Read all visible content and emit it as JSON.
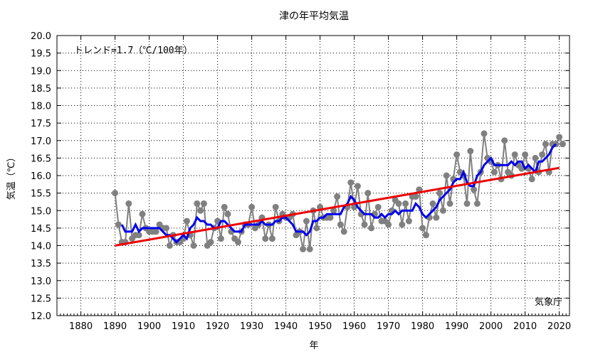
{
  "chart_data": {
    "type": "line",
    "title": "津の年平均気温",
    "xlabel": "年",
    "ylabel": "気温（℃）",
    "annotation": "トレンド=1.7（℃/100年）",
    "credit": "気象庁",
    "xlim": [
      1873,
      2023
    ],
    "ylim": [
      12.0,
      20.0
    ],
    "x_ticks": [
      1880,
      1890,
      1900,
      1910,
      1920,
      1930,
      1940,
      1950,
      1960,
      1970,
      1980,
      1990,
      2000,
      2010,
      2020
    ],
    "y_ticks": [
      12.0,
      12.5,
      13.0,
      13.5,
      14.0,
      14.5,
      15.0,
      15.5,
      16.0,
      16.5,
      17.0,
      17.5,
      18.0,
      18.5,
      19.0,
      19.5,
      20.0
    ],
    "y_tick_labels": [
      "12.0",
      "12.5",
      "13.0",
      "13.5",
      "14.0",
      "14.5",
      "15.0",
      "15.5",
      "16.0",
      "16.5",
      "17.0",
      "17.5",
      "18.0",
      "18.5",
      "19.0",
      "19.5",
      "20.0"
    ],
    "grid": true,
    "colors": {
      "annual": "#808080",
      "moving_average": "#0000ee",
      "trend": "#ee0000",
      "grid": "#000000"
    },
    "series": [
      {
        "kind": "annual",
        "x": [
          1890,
          1891,
          1892,
          1893,
          1894,
          1895,
          1896,
          1897,
          1898,
          1899,
          1900,
          1901,
          1902,
          1903,
          1904,
          1905,
          1906,
          1907,
          1908,
          1909,
          1910,
          1911,
          1912,
          1913,
          1914,
          1915,
          1916,
          1917,
          1918,
          1919,
          1920,
          1921,
          1922,
          1923,
          1924,
          1925,
          1926,
          1927,
          1928,
          1929,
          1930,
          1931,
          1932,
          1933,
          1934,
          1935,
          1936,
          1937,
          1938,
          1939,
          1940,
          1941,
          1942,
          1943,
          1944,
          1945,
          1946,
          1947,
          1948,
          1949,
          1950,
          1951,
          1952,
          1953,
          1954,
          1955,
          1956,
          1957,
          1958,
          1959,
          1960,
          1961,
          1962,
          1963,
          1964,
          1965,
          1966,
          1967,
          1968,
          1969,
          1970,
          1971,
          1972,
          1973,
          1974,
          1975,
          1976,
          1977,
          1978,
          1979,
          1980,
          1981,
          1982,
          1983,
          1984,
          1985,
          1986,
          1987,
          1988,
          1989,
          1990,
          1991,
          1992,
          1993,
          1994,
          1995,
          1996,
          1997,
          1998,
          1999,
          2000,
          2001,
          2002,
          2003,
          2004,
          2005,
          2006,
          2007,
          2008,
          2009,
          2010,
          2011,
          2012,
          2013,
          2014,
          2015,
          2016,
          2017,
          2018,
          2019,
          2020,
          2021
        ],
        "y": [
          15.5,
          14.6,
          14.1,
          14.1,
          15.2,
          14.2,
          14.3,
          14.3,
          14.9,
          14.5,
          14.4,
          14.4,
          14.4,
          14.6,
          14.5,
          14.5,
          14.0,
          14.3,
          14.1,
          14.1,
          14.2,
          14.7,
          14.3,
          14.0,
          15.2,
          15.0,
          15.2,
          14.0,
          14.1,
          14.5,
          14.7,
          14.2,
          15.1,
          14.9,
          14.4,
          14.2,
          14.1,
          14.4,
          14.6,
          14.6,
          15.1,
          14.5,
          14.6,
          14.8,
          14.2,
          14.6,
          14.2,
          15.1,
          14.7,
          14.9,
          14.8,
          14.8,
          14.9,
          14.3,
          14.4,
          13.9,
          14.7,
          13.9,
          15.0,
          14.5,
          15.1,
          14.8,
          14.8,
          14.8,
          15.0,
          15.4,
          14.6,
          14.4,
          15.1,
          15.8,
          15.1,
          15.7,
          14.9,
          14.6,
          15.5,
          14.5,
          14.9,
          15.1,
          14.7,
          14.7,
          14.6,
          15.0,
          15.3,
          15.2,
          14.6,
          15.2,
          14.7,
          15.4,
          15.4,
          15.6,
          14.5,
          14.3,
          14.8,
          15.2,
          14.8,
          15.5,
          15.0,
          16.0,
          15.2,
          15.9,
          16.6,
          16.1,
          16.0,
          15.2,
          16.7,
          15.6,
          15.2,
          16.1,
          17.2,
          16.5,
          16.4,
          16.1,
          16.3,
          15.9,
          17.0,
          16.1,
          16.0,
          16.6,
          16.3,
          16.2,
          16.6,
          16.2,
          15.9,
          16.5,
          16.1,
          16.6,
          16.9,
          16.1,
          16.9,
          16.9,
          17.1,
          16.9
        ]
      },
      {
        "kind": "moving_average",
        "x": [
          1892,
          1893,
          1894,
          1895,
          1896,
          1897,
          1898,
          1899,
          1900,
          1901,
          1902,
          1903,
          1904,
          1905,
          1906,
          1907,
          1908,
          1909,
          1910,
          1911,
          1912,
          1913,
          1914,
          1915,
          1916,
          1917,
          1918,
          1919,
          1920,
          1921,
          1922,
          1923,
          1924,
          1925,
          1926,
          1927,
          1928,
          1929,
          1930,
          1931,
          1932,
          1933,
          1934,
          1935,
          1936,
          1937,
          1938,
          1939,
          1940,
          1941,
          1942,
          1943,
          1944,
          1945,
          1946,
          1947,
          1948,
          1949,
          1950,
          1951,
          1952,
          1953,
          1954,
          1955,
          1956,
          1957,
          1958,
          1959,
          1960,
          1961,
          1962,
          1963,
          1964,
          1965,
          1966,
          1967,
          1968,
          1969,
          1970,
          1971,
          1972,
          1973,
          1974,
          1975,
          1976,
          1977,
          1978,
          1979,
          1980,
          1981,
          1982,
          1983,
          1984,
          1985,
          1986,
          1987,
          1988,
          1989,
          1990,
          1991,
          1992,
          1993,
          1994,
          1995,
          1996,
          1997,
          1998,
          1999,
          2000,
          2001,
          2002,
          2003,
          2004,
          2005,
          2006,
          2007,
          2008,
          2009,
          2010,
          2011,
          2012,
          2013,
          2014,
          2015,
          2016,
          2017,
          2018,
          2019
        ],
        "y": [
          14.6,
          14.4,
          14.4,
          14.4,
          14.6,
          14.4,
          14.5,
          14.5,
          14.5,
          14.5,
          14.5,
          14.5,
          14.4,
          14.3,
          14.3,
          14.2,
          14.1,
          14.2,
          14.3,
          14.2,
          14.5,
          14.6,
          14.8,
          14.7,
          14.7,
          14.6,
          14.6,
          14.5,
          14.5,
          14.7,
          14.7,
          14.6,
          14.5,
          14.4,
          14.4,
          14.4,
          14.6,
          14.6,
          14.6,
          14.6,
          14.6,
          14.7,
          14.6,
          14.6,
          14.6,
          14.7,
          14.7,
          14.8,
          14.8,
          14.7,
          14.6,
          14.4,
          14.4,
          14.4,
          14.3,
          14.4,
          14.7,
          14.7,
          14.8,
          14.8,
          14.9,
          14.9,
          14.9,
          14.9,
          14.9,
          15.1,
          15.2,
          15.4,
          15.3,
          15.1,
          15.0,
          14.9,
          14.9,
          14.9,
          14.8,
          14.8,
          14.9,
          14.8,
          14.9,
          14.9,
          15.0,
          14.9,
          15.0,
          15.0,
          15.0,
          15.0,
          15.2,
          15.1,
          14.9,
          14.8,
          14.9,
          15.0,
          15.1,
          15.3,
          15.4,
          15.5,
          15.6,
          15.8,
          15.9,
          15.9,
          16.1,
          15.8,
          15.7,
          15.7,
          16.0,
          16.1,
          16.3,
          16.4,
          16.5,
          16.3,
          16.3,
          16.3,
          16.3,
          16.3,
          16.4,
          16.3,
          16.4,
          16.4,
          16.2,
          16.3,
          16.2,
          16.1,
          16.4,
          16.4,
          16.5,
          16.6,
          16.8,
          16.9
        ]
      },
      {
        "kind": "trend",
        "x": [
          1890,
          2020
        ],
        "y": [
          14.0,
          16.22
        ]
      }
    ]
  }
}
